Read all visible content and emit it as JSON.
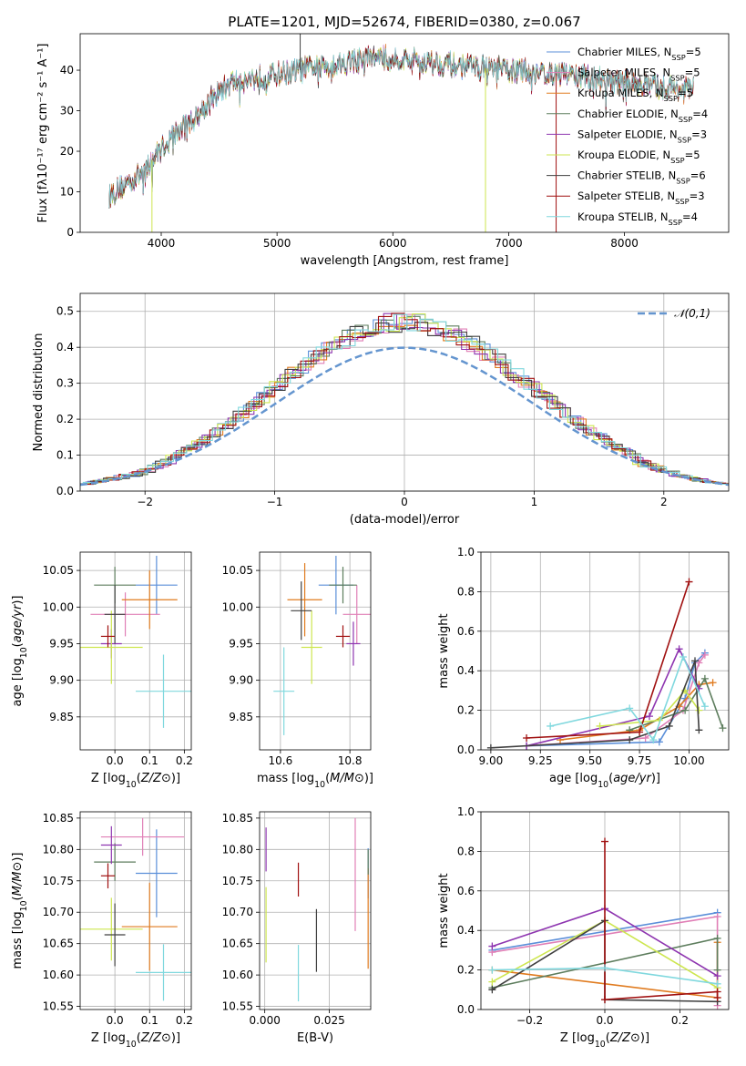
{
  "colors": {
    "chabrier_miles": "#5b8fd9",
    "salpeter_miles": "#e07fb6",
    "kroupa_miles": "#e07b1f",
    "chabrier_elodie": "#5d7d5d",
    "salpeter_elodie": "#8e35b0",
    "kroupa_elodie": "#cde64f",
    "chabrier_stelib": "#404040",
    "salpeter_stelib": "#a01010",
    "kroupa_stelib": "#80d8de",
    "normal": "#6495cf",
    "grid": "#b0b0b0"
  },
  "chart_data": [
    {
      "id": "spectrum",
      "type": "line",
      "title": "PLATE=1201, MJD=52674, FIBERID=0380, z=0.067",
      "xlabel": "wavelength [Angstrom, rest frame]",
      "ylabel": "Flux [fλ10⁻¹⁷ erg cm⁻² s⁻¹ A⁻¹]",
      "xlim": [
        3300,
        8900
      ],
      "ylim": [
        0,
        49
      ],
      "xticks": [
        4000,
        5000,
        6000,
        7000,
        8000
      ],
      "yticks": [
        0,
        10,
        20,
        30,
        40
      ],
      "grid": false,
      "legend_position": "top-right",
      "continuum_x": [
        3550,
        3700,
        3850,
        3950,
        4100,
        4250,
        4400,
        4600,
        4800,
        5000,
        5200,
        5400,
        5600,
        5800,
        6000,
        6300,
        6600,
        7000,
        7500,
        8000,
        8600
      ],
      "continuum_y": [
        9,
        12,
        15,
        19,
        24,
        27,
        32,
        37,
        38,
        39,
        40,
        41,
        42,
        43,
        43,
        42,
        41,
        40,
        39,
        37,
        35
      ],
      "series": [
        {
          "name": "Chabrier MILES, N$_{SSP}$=5",
          "color_key": "chabrier_miles"
        },
        {
          "name": "Salpeter MILES, N$_{SSP}$=5",
          "color_key": "salpeter_miles"
        },
        {
          "name": "Kroupa MILES, N$_{SSP}$=5",
          "color_key": "kroupa_miles"
        },
        {
          "name": "Chabrier ELODIE, N$_{SSP}$=4",
          "color_key": "chabrier_elodie"
        },
        {
          "name": "Salpeter ELODIE, N$_{SSP}$=3",
          "color_key": "salpeter_elodie"
        },
        {
          "name": "Kroupa ELODIE, N$_{SSP}$=5",
          "color_key": "kroupa_elodie"
        },
        {
          "name": "Chabrier STELIB, N$_{SSP}$=6",
          "color_key": "chabrier_stelib"
        },
        {
          "name": "Salpeter STELIB, N$_{SSP}$=3",
          "color_key": "salpeter_stelib"
        },
        {
          "name": "Kroupa STELIB, N$_{SSP}$=4",
          "color_key": "kroupa_stelib"
        }
      ]
    },
    {
      "id": "residuals",
      "type": "step",
      "xlabel": "(data-model)/error",
      "ylabel": "Normed distribution",
      "xlim": [
        -2.5,
        2.5
      ],
      "ylim": [
        0,
        0.55
      ],
      "xticks": [
        -2,
        -1,
        0,
        1,
        2
      ],
      "yticks": [
        0.0,
        0.1,
        0.2,
        0.3,
        0.4,
        0.5
      ],
      "grid": true,
      "bin_width": 0.1,
      "legend": "$\\mathcal{N}(0,1)$",
      "legend_position": "top-right"
    },
    {
      "id": "age_vs_z",
      "type": "errorbar",
      "xlabel": "Z [log$_{10}$($Z/Z_\\odot$)]",
      "ylabel": "age  [log$_{10}$($age/yr$)]",
      "xlim": [
        -0.1,
        0.22
      ],
      "ylim": [
        9.805,
        10.075
      ],
      "xticks": [
        0.0,
        0.1,
        0.2
      ],
      "yticks": [
        9.85,
        9.9,
        9.95,
        10.0,
        10.05
      ],
      "grid": true,
      "points": [
        {
          "color_key": "chabrier_miles",
          "x": 0.12,
          "xerr": 0.06,
          "y": 10.03,
          "yerr": 0.04
        },
        {
          "color_key": "salpeter_miles",
          "x": 0.03,
          "xerr": 0.1,
          "y": 9.99,
          "yerr": 0.03
        },
        {
          "color_key": "kroupa_miles",
          "x": 0.1,
          "xerr": 0.08,
          "y": 10.01,
          "yerr": 0.04
        },
        {
          "color_key": "chabrier_elodie",
          "x": 0.0,
          "xerr": 0.06,
          "y": 10.03,
          "yerr": 0.025
        },
        {
          "color_key": "salpeter_elodie",
          "x": -0.01,
          "xerr": 0.03,
          "y": 9.95,
          "yerr": 0.02
        },
        {
          "color_key": "kroupa_elodie",
          "x": -0.01,
          "xerr": 0.09,
          "y": 9.945,
          "yerr": 0.05
        },
        {
          "color_key": "chabrier_stelib",
          "x": 0.0,
          "xerr": 0.03,
          "y": 9.99,
          "yerr": 0.04
        },
        {
          "color_key": "salpeter_stelib",
          "x": -0.02,
          "xerr": 0.02,
          "y": 9.96,
          "yerr": 0.015
        },
        {
          "color_key": "kroupa_stelib",
          "x": 0.14,
          "xerr": 0.08,
          "y": 9.885,
          "yerr": 0.05
        }
      ]
    },
    {
      "id": "age_vs_mass",
      "type": "errorbar",
      "xlabel": "mass [log$_{10}$($M/M_\\odot$)]",
      "ylim": [
        9.805,
        10.075
      ],
      "xlim": [
        10.54,
        10.86
      ],
      "xticks": [
        10.6,
        10.8
      ],
      "yticks": [
        9.85,
        9.9,
        9.95,
        10.0,
        10.05
      ],
      "grid": true,
      "points": [
        {
          "color_key": "chabrier_miles",
          "x": 10.76,
          "xerr": 0.05,
          "y": 10.03,
          "yerr": 0.04
        },
        {
          "color_key": "salpeter_miles",
          "x": 10.82,
          "xerr": 0.04,
          "y": 9.99,
          "yerr": 0.04
        },
        {
          "color_key": "kroupa_miles",
          "x": 10.67,
          "xerr": 0.05,
          "y": 10.01,
          "yerr": 0.05
        },
        {
          "color_key": "chabrier_elodie",
          "x": 10.78,
          "xerr": 0.04,
          "y": 10.03,
          "yerr": 0.025
        },
        {
          "color_key": "salpeter_elodie",
          "x": 10.81,
          "xerr": 0.02,
          "y": 9.95,
          "yerr": 0.03
        },
        {
          "color_key": "kroupa_elodie",
          "x": 10.69,
          "xerr": 0.03,
          "y": 9.945,
          "yerr": 0.05
        },
        {
          "color_key": "chabrier_stelib",
          "x": 10.66,
          "xerr": 0.03,
          "y": 9.995,
          "yerr": 0.04
        },
        {
          "color_key": "salpeter_stelib",
          "x": 10.78,
          "xerr": 0.02,
          "y": 9.96,
          "yerr": 0.015
        },
        {
          "color_key": "kroupa_stelib",
          "x": 10.61,
          "xerr": 0.03,
          "y": 9.885,
          "yerr": 0.06
        }
      ]
    },
    {
      "id": "weight_vs_age",
      "type": "line",
      "xlabel": "age  [log$_{10}$($age/yr$)]",
      "ylabel": "mass weight",
      "xlim": [
        8.95,
        10.2
      ],
      "ylim": [
        0,
        1
      ],
      "xticks": [
        9.0,
        9.25,
        9.5,
        9.75,
        10.0
      ],
      "yticks": [
        0.0,
        0.2,
        0.4,
        0.6,
        0.8,
        1.0
      ],
      "grid": true,
      "series": [
        {
          "color_key": "chabrier_miles",
          "x": [
            9.18,
            9.85,
            9.98,
            10.03,
            10.08
          ],
          "y": [
            0.02,
            0.04,
            0.26,
            0.44,
            0.49
          ]
        },
        {
          "color_key": "salpeter_miles",
          "x": [
            9.18,
            9.78,
            9.97,
            10.05,
            10.08
          ],
          "y": [
            0.02,
            0.06,
            0.2,
            0.44,
            0.48
          ]
        },
        {
          "color_key": "kroupa_miles",
          "x": [
            9.35,
            9.75,
            9.95,
            10.05,
            10.12
          ],
          "y": [
            0.05,
            0.1,
            0.22,
            0.33,
            0.34
          ]
        },
        {
          "color_key": "chabrier_elodie",
          "x": [
            9.7,
            9.98,
            10.08,
            10.17
          ],
          "y": [
            0.1,
            0.2,
            0.36,
            0.11
          ]
        },
        {
          "color_key": "salpeter_elodie",
          "x": [
            9.18,
            9.8,
            9.95,
            10.05
          ],
          "y": [
            0.02,
            0.17,
            0.51,
            0.31
          ]
        },
        {
          "color_key": "kroupa_elodie",
          "x": [
            9.55,
            9.85,
            9.98,
            10.05
          ],
          "y": [
            0.12,
            0.15,
            0.3,
            0.2
          ]
        },
        {
          "color_key": "chabrier_stelib",
          "x": [
            9.0,
            9.7,
            9.9,
            10.03,
            10.05
          ],
          "y": [
            0.01,
            0.05,
            0.12,
            0.45,
            0.1
          ]
        },
        {
          "color_key": "salpeter_stelib",
          "x": [
            9.18,
            9.75,
            10.0
          ],
          "y": [
            0.06,
            0.09,
            0.85
          ]
        },
        {
          "color_key": "kroupa_stelib",
          "x": [
            9.3,
            9.7,
            9.82,
            9.97,
            10.08
          ],
          "y": [
            0.12,
            0.21,
            0.05,
            0.47,
            0.22
          ]
        }
      ]
    },
    {
      "id": "mass_vs_z",
      "type": "errorbar",
      "xlabel": "Z [log$_{10}$($Z/Z_\\odot$)]",
      "ylabel": "mass [log$_{10}$($M/M_\\odot$)]",
      "xlim": [
        -0.1,
        0.22
      ],
      "ylim": [
        10.545,
        10.86
      ],
      "xticks": [
        0.0,
        0.1,
        0.2
      ],
      "yticks": [
        10.55,
        10.6,
        10.65,
        10.7,
        10.75,
        10.8,
        10.85
      ],
      "grid": true,
      "points": [
        {
          "color_key": "chabrier_miles",
          "x": 0.12,
          "xerr": 0.06,
          "y": 10.762,
          "yerr": 0.07
        },
        {
          "color_key": "salpeter_miles",
          "x": 0.08,
          "xerr": 0.12,
          "y": 10.82,
          "yerr": 0.03
        },
        {
          "color_key": "kroupa_miles",
          "x": 0.1,
          "xerr": 0.08,
          "y": 10.677,
          "yerr": 0.07
        },
        {
          "color_key": "chabrier_elodie",
          "x": 0.0,
          "xerr": 0.06,
          "y": 10.78,
          "yerr": 0.03
        },
        {
          "color_key": "salpeter_elodie",
          "x": -0.01,
          "xerr": 0.03,
          "y": 10.807,
          "yerr": 0.03
        },
        {
          "color_key": "kroupa_elodie",
          "x": -0.01,
          "xerr": 0.09,
          "y": 10.673,
          "yerr": 0.05
        },
        {
          "color_key": "chabrier_stelib",
          "x": 0.0,
          "xerr": 0.03,
          "y": 10.664,
          "yerr": 0.05
        },
        {
          "color_key": "salpeter_stelib",
          "x": -0.02,
          "xerr": 0.02,
          "y": 10.758,
          "yerr": 0.02
        },
        {
          "color_key": "kroupa_stelib",
          "x": 0.14,
          "xerr": 0.08,
          "y": 10.604,
          "yerr": 0.045
        }
      ]
    },
    {
      "id": "mass_vs_ebv",
      "type": "errorbar",
      "xlabel": "E(B-V)",
      "xlim": [
        -0.002,
        0.041
      ],
      "ylim": [
        10.545,
        10.86
      ],
      "xticks": [
        0.0,
        0.025
      ],
      "yticks": [
        10.55,
        10.6,
        10.65,
        10.7,
        10.75,
        10.8,
        10.85
      ],
      "grid": true,
      "points": [
        {
          "color_key": "chabrier_miles",
          "x": 0.04,
          "xerr": 0.0,
          "y": 10.762,
          "yerr": 0.04
        },
        {
          "color_key": "salpeter_miles",
          "x": 0.035,
          "xerr": 0.0,
          "y": 10.76,
          "yerr": 0.09
        },
        {
          "color_key": "kroupa_miles",
          "x": 0.04,
          "xerr": 0.0,
          "y": 10.69,
          "yerr": 0.08
        },
        {
          "color_key": "chabrier_elodie",
          "x": 0.04,
          "xerr": 0.0,
          "y": 10.78,
          "yerr": 0.02
        },
        {
          "color_key": "salpeter_elodie",
          "x": 0.0005,
          "xerr": 0.0,
          "y": 10.8,
          "yerr": 0.035
        },
        {
          "color_key": "kroupa_elodie",
          "x": 0.0005,
          "xerr": 0.0,
          "y": 10.68,
          "yerr": 0.06
        },
        {
          "color_key": "chabrier_stelib",
          "x": 0.02,
          "xerr": 0.0,
          "y": 10.655,
          "yerr": 0.05
        },
        {
          "color_key": "salpeter_stelib",
          "x": 0.013,
          "xerr": 0.0,
          "y": 10.752,
          "yerr": 0.027
        },
        {
          "color_key": "kroupa_stelib",
          "x": 0.013,
          "xerr": 0.0,
          "y": 10.603,
          "yerr": 0.045
        }
      ]
    },
    {
      "id": "weight_vs_z",
      "type": "line",
      "xlabel": "Z [log$_{10}$($Z/Z_\\odot$)]",
      "ylabel": "mass weight",
      "xlim": [
        -0.33,
        0.33
      ],
      "ylim": [
        0,
        1
      ],
      "xticks": [
        -0.2,
        0.0,
        0.2
      ],
      "yticks": [
        0.0,
        0.2,
        0.4,
        0.6,
        0.8,
        1.0
      ],
      "grid": true,
      "series": [
        {
          "color_key": "chabrier_miles",
          "x": [
            -0.3,
            0.3
          ],
          "y": [
            0.3,
            0.49
          ]
        },
        {
          "color_key": "salpeter_miles",
          "x": [
            -0.3,
            0.3,
            0.3
          ],
          "y": [
            0.29,
            0.47,
            0.02
          ]
        },
        {
          "color_key": "kroupa_miles",
          "x": [
            -0.3,
            0.3,
            0.3
          ],
          "y": [
            0.2,
            0.06,
            0.34
          ]
        },
        {
          "color_key": "chabrier_elodie",
          "x": [
            -0.3,
            0.3,
            0.3
          ],
          "y": [
            0.11,
            0.36,
            0.2
          ]
        },
        {
          "color_key": "salpeter_elodie",
          "x": [
            -0.3,
            0.0,
            0.3
          ],
          "y": [
            0.32,
            0.51,
            0.17
          ]
        },
        {
          "color_key": "kroupa_elodie",
          "x": [
            -0.3,
            0.0,
            0.3
          ],
          "y": [
            0.14,
            0.45,
            0.11
          ]
        },
        {
          "color_key": "chabrier_stelib",
          "x": [
            -0.3,
            0.0,
            0.0,
            0.3
          ],
          "y": [
            0.1,
            0.45,
            0.05,
            0.04
          ]
        },
        {
          "color_key": "salpeter_stelib",
          "x": [
            0.0,
            0.0,
            0.3,
            0.3
          ],
          "y": [
            0.85,
            0.05,
            0.09,
            0.06
          ]
        },
        {
          "color_key": "kroupa_stelib",
          "x": [
            -0.3,
            0.0,
            0.3
          ],
          "y": [
            0.2,
            0.21,
            0.13
          ]
        }
      ]
    }
  ]
}
